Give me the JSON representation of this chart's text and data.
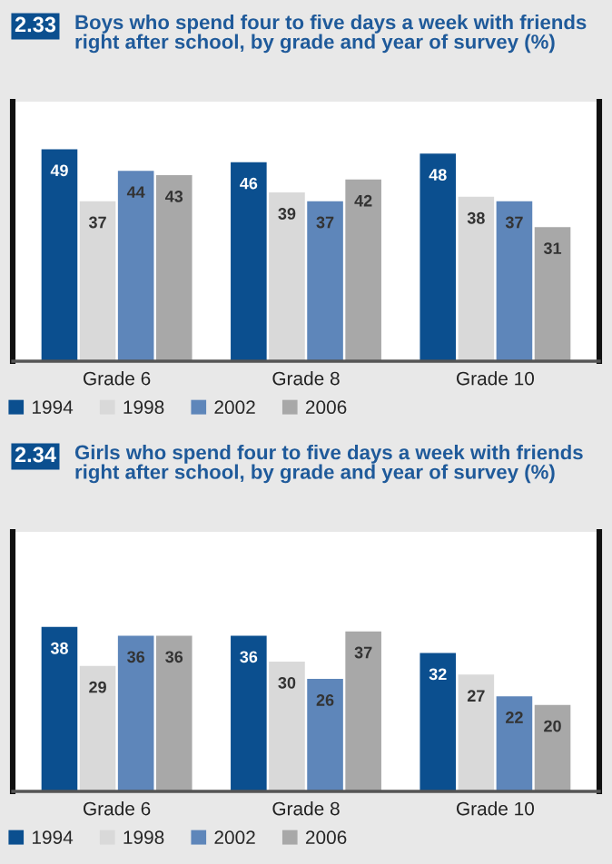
{
  "chart_data": [
    {
      "type": "bar",
      "title": "Boys who spend four to five days a week with friends right after school, by grade and year of survey (%)",
      "annotations": [
        "2.33"
      ],
      "categories": [
        "Grade 6",
        "Grade 8",
        "Grade 10"
      ],
      "series": [
        {
          "name": "1994",
          "color": "#0b4f8f",
          "values": [
            49,
            46,
            48
          ]
        },
        {
          "name": "1998",
          "color": "#d9d9d9",
          "values": [
            37,
            39,
            38
          ]
        },
        {
          "name": "2002",
          "color": "#5e86ba",
          "values": [
            44,
            37,
            37
          ]
        },
        {
          "name": "2006",
          "color": "#a8a8a8",
          "values": [
            43,
            42,
            31
          ]
        }
      ],
      "ylim": [
        0,
        60
      ],
      "data_labels": true,
      "legend": "bottom",
      "tick_labels": "x",
      "grid": false
    },
    {
      "type": "bar",
      "title": "Girls who spend four to five days a week with friends right after school, by grade and year of survey (%)",
      "annotations": [
        "2.34"
      ],
      "categories": [
        "Grade 6",
        "Grade 8",
        "Grade 10"
      ],
      "series": [
        {
          "name": "1994",
          "color": "#0b4f8f",
          "values": [
            38,
            36,
            32
          ]
        },
        {
          "name": "1998",
          "color": "#d9d9d9",
          "values": [
            29,
            30,
            27
          ]
        },
        {
          "name": "2002",
          "color": "#5e86ba",
          "values": [
            36,
            26,
            22
          ]
        },
        {
          "name": "2006",
          "color": "#a8a8a8",
          "values": [
            36,
            37,
            20
          ]
        }
      ],
      "ylim": [
        0,
        60
      ],
      "data_labels": true,
      "legend": "bottom",
      "tick_labels": "x",
      "grid": false
    }
  ]
}
